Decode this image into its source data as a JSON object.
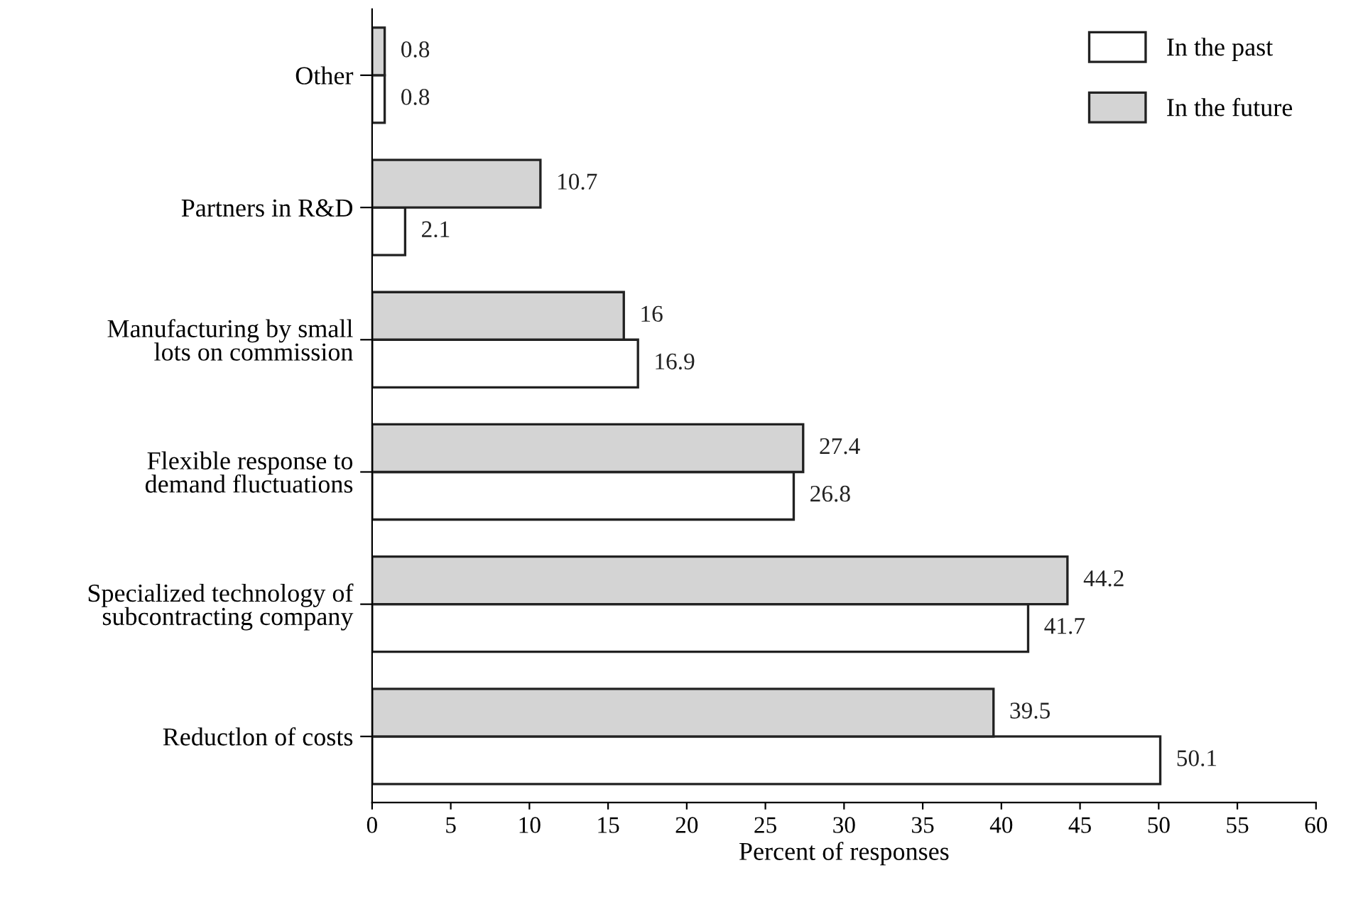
{
  "chart_data": {
    "type": "bar",
    "orientation": "horizontal",
    "xlabel": "Percent of responses",
    "categories": [
      "Other",
      "Partners in R&D",
      "Manufacturing by small\nlots on commission",
      "Flexible response to\ndemand fluctuations",
      "Specialized technology of\nsubcontracting company",
      "Reductlon of costs"
    ],
    "series": [
      {
        "name": "In the past",
        "color": "#ffffff",
        "values": [
          0.8,
          2.1,
          16.9,
          26.8,
          41.7,
          50.1
        ]
      },
      {
        "name": "In the future",
        "color": "#d4d4d4",
        "values": [
          0.8,
          10.7,
          16,
          27.4,
          44.2,
          39.5
        ]
      }
    ],
    "xlim": [
      0,
      60
    ],
    "xticks": [
      0,
      5,
      10,
      15,
      20,
      25,
      30,
      35,
      40,
      45,
      50,
      55,
      60
    ],
    "data_labels": true,
    "legend": "top right",
    "grid": false
  }
}
